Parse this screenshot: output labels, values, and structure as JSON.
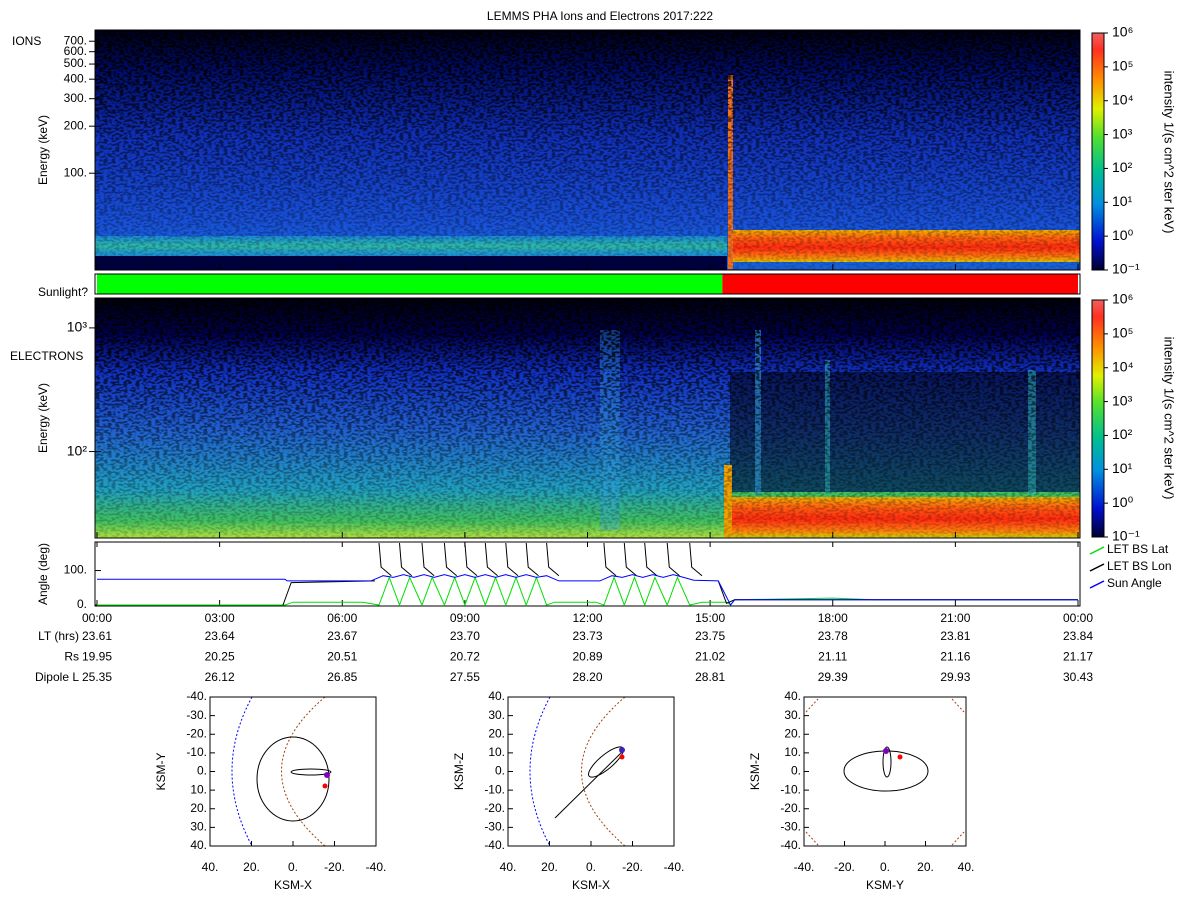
{
  "title": "LEMMS PHA Ions and Electrons  2017:222",
  "ions": {
    "label": "IONS",
    "ylabel": "Energy (keV)",
    "log": true,
    "ylim": [
      24,
      826
    ],
    "yticks": [
      {
        "value": 100,
        "label": "100."
      },
      {
        "value": 200,
        "label": "200."
      },
      {
        "value": 300,
        "label": "300."
      },
      {
        "value": 400,
        "label": "400."
      },
      {
        "value": 500,
        "label": "500."
      },
      {
        "value": 600,
        "label": "600."
      },
      {
        "value": 700,
        "label": "700."
      }
    ]
  },
  "electrons": {
    "label": "ELECTRONS",
    "ylabel": "Energy (keV)",
    "log": true,
    "ylim": [
      20,
      1745
    ],
    "yticks": [
      {
        "value": 100,
        "label": "10²"
      },
      {
        "value": 1000,
        "label": "10³"
      }
    ]
  },
  "colorbar": {
    "title": "intensity 1/(s cm^2 ster keV)",
    "log": true,
    "lim": [
      0.1,
      1000000
    ],
    "ticks": [
      {
        "value": 0.1,
        "label": "10⁻¹"
      },
      {
        "value": 1,
        "label": "10⁰"
      },
      {
        "value": 10,
        "label": "10¹"
      },
      {
        "value": 100,
        "label": "10²"
      },
      {
        "value": 1000,
        "label": "10³"
      },
      {
        "value": 10000,
        "label": "10⁴"
      },
      {
        "value": 100000,
        "label": "10⁵"
      },
      {
        "value": 1000000,
        "label": "10⁶"
      }
    ]
  },
  "sunlight": {
    "label": "Sunlight?",
    "segments": [
      {
        "start": 0,
        "end": 15.3,
        "color": "#00ff00"
      },
      {
        "start": 15.3,
        "end": 24,
        "color": "#ff0000"
      }
    ]
  },
  "chart_data": {
    "type": "line",
    "ylabel": "Angle (deg)",
    "legend": "right",
    "xlim": [
      0,
      24
    ],
    "xticks": [
      {
        "value": 0,
        "label": "00:00"
      },
      {
        "value": 3,
        "label": "03:00"
      },
      {
        "value": 6,
        "label": "06:00"
      },
      {
        "value": 9,
        "label": "09:00"
      },
      {
        "value": 12,
        "label": "12:00"
      },
      {
        "value": 15,
        "label": "15:00"
      },
      {
        "value": 18,
        "label": "18:00"
      },
      {
        "value": 21,
        "label": "21:00"
      },
      {
        "value": 24,
        "label": "00:00"
      }
    ],
    "ylim": [
      0,
      180
    ],
    "yticks": [
      {
        "value": 0,
        "label": "0."
      },
      {
        "value": 100,
        "label": "100."
      }
    ],
    "series": [
      {
        "name": "LET BS Lat",
        "color": "#00e000",
        "x": [
          0,
          4.6,
          4.8,
          6.5,
          6.9,
          7.15,
          7.4,
          7.65,
          7.95,
          8.2,
          8.5,
          8.75,
          9.0,
          9.25,
          9.5,
          9.75,
          10.0,
          10.25,
          10.5,
          10.75,
          11.0,
          11.2,
          12.2,
          12.4,
          12.65,
          12.9,
          13.15,
          13.4,
          13.65,
          13.95,
          14.2,
          14.5,
          14.8,
          15.4,
          15.5,
          15.6,
          18,
          19,
          24
        ],
        "values": [
          0,
          0,
          8,
          8,
          0,
          80,
          0,
          80,
          0,
          80,
          0,
          80,
          0,
          80,
          0,
          80,
          0,
          80,
          0,
          80,
          0,
          8,
          8,
          0,
          80,
          0,
          80,
          0,
          80,
          0,
          80,
          0,
          8,
          8,
          0,
          15,
          20,
          15,
          15
        ]
      },
      {
        "name": "LET BS Lon",
        "color": "#000000",
        "x": [
          4.55,
          4.75,
          6.8,
          6.85,
          6.9,
          6.95,
          7.2,
          7.21,
          7.4,
          7.45,
          7.7,
          7.71,
          7.95,
          8.0,
          8.25,
          8.26,
          8.5,
          8.55,
          8.8,
          8.81,
          9.0,
          9.05,
          9.3,
          9.31,
          9.5,
          9.55,
          9.8,
          9.81,
          10.0,
          10.05,
          10.3,
          10.31,
          10.5,
          10.55,
          10.8,
          10.81,
          11.0,
          11.05,
          11.3,
          11.31,
          12.4,
          12.45,
          12.7,
          12.71,
          12.9,
          12.95,
          13.2,
          13.21,
          13.4,
          13.45,
          13.7,
          13.71,
          13.95,
          14.0,
          14.25,
          14.26,
          14.5,
          14.55,
          14.8,
          14.81,
          15.2,
          15.4,
          15.6,
          24
        ],
        "values": [
          0,
          65,
          70,
          null,
          180,
          110,
          85,
          null,
          180,
          110,
          85,
          null,
          180,
          110,
          85,
          null,
          180,
          110,
          85,
          null,
          180,
          110,
          85,
          null,
          180,
          110,
          85,
          null,
          180,
          110,
          85,
          null,
          180,
          110,
          85,
          null,
          180,
          110,
          85,
          null,
          180,
          110,
          85,
          null,
          180,
          110,
          85,
          null,
          180,
          110,
          85,
          null,
          180,
          110,
          85,
          null,
          180,
          110,
          85,
          null,
          70,
          5,
          15,
          15
        ]
      },
      {
        "name": "Sun Angle",
        "color": "#0000ff",
        "x": [
          0,
          4.6,
          4.65,
          6.7,
          7.0,
          7.25,
          7.5,
          7.75,
          8.0,
          8.25,
          8.5,
          8.75,
          9.0,
          9.25,
          9.5,
          9.75,
          10.0,
          10.25,
          10.5,
          10.75,
          11.0,
          11.3,
          12.3,
          12.6,
          12.85,
          13.1,
          13.35,
          13.6,
          13.85,
          14.1,
          14.35,
          14.6,
          15.2,
          15.5,
          15.6,
          24
        ],
        "values": [
          75,
          75,
          70,
          70,
          85,
          80,
          88,
          80,
          88,
          80,
          88,
          80,
          88,
          80,
          88,
          80,
          88,
          80,
          88,
          80,
          85,
          70,
          70,
          85,
          80,
          88,
          80,
          88,
          80,
          88,
          80,
          72,
          70,
          0,
          15,
          15
        ]
      }
    ]
  },
  "ephemeris": {
    "rows": [
      {
        "label": "LT (hrs)",
        "values": [
          "23.61",
          "23.64",
          "23.67",
          "23.70",
          "23.73",
          "23.75",
          "23.78",
          "23.81",
          "23.84"
        ]
      },
      {
        "label": "Rs",
        "values": [
          "19.95",
          "20.25",
          "20.51",
          "20.72",
          "20.89",
          "21.02",
          "21.11",
          "21.16",
          "21.17"
        ]
      },
      {
        "label": "Dipole L",
        "values": [
          "25.35",
          "26.12",
          "26.85",
          "27.55",
          "28.20",
          "28.81",
          "29.39",
          "29.93",
          "30.43"
        ]
      }
    ]
  },
  "orbits": {
    "xticks": [
      {
        "value": -40,
        "label": "-40."
      },
      {
        "value": -20,
        "label": "-20."
      },
      {
        "value": 0,
        "label": "0."
      },
      {
        "value": 20,
        "label": "20."
      },
      {
        "value": 40,
        "label": "40."
      }
    ],
    "yticks": [
      {
        "value": -40,
        "label": "-40."
      },
      {
        "value": -30,
        "label": "-30."
      },
      {
        "value": -20,
        "label": "-20."
      },
      {
        "value": -10,
        "label": "-10."
      },
      {
        "value": 0,
        "label": "0."
      },
      {
        "value": 10,
        "label": "10."
      },
      {
        "value": 20,
        "label": "20."
      },
      {
        "value": 30,
        "label": "30."
      },
      {
        "value": 40,
        "label": "40."
      }
    ],
    "plots": [
      {
        "xlabel": "KSM-X",
        "ylabel": "KSM-Y",
        "xlim": [
          40,
          -40
        ],
        "ylim": [
          40,
          -40
        ]
      },
      {
        "xlabel": "KSM-X",
        "ylabel": "KSM-Z",
        "xlim": [
          40,
          -40
        ],
        "ylim": [
          -40,
          40
        ]
      },
      {
        "xlabel": "KSM-Y",
        "ylabel": "KSM-Z",
        "xlim": [
          -40,
          40
        ],
        "ylim": [
          -40,
          40
        ]
      }
    ]
  }
}
